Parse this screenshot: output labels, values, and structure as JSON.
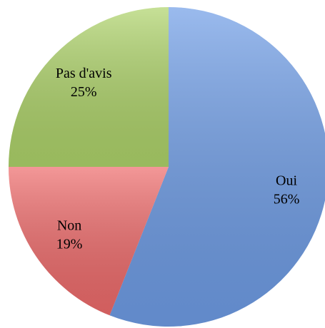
{
  "chart_data": {
    "type": "pie",
    "categories": [
      "Oui",
      "Non",
      "Pas d'avis"
    ],
    "values": [
      56,
      19,
      25
    ],
    "value_labels": [
      "56%",
      "19%",
      "25%"
    ],
    "colors": [
      "#6f9de6",
      "#ee6b6b",
      "#aed36a"
    ],
    "start_angle": 0,
    "direction": "clockwise"
  }
}
